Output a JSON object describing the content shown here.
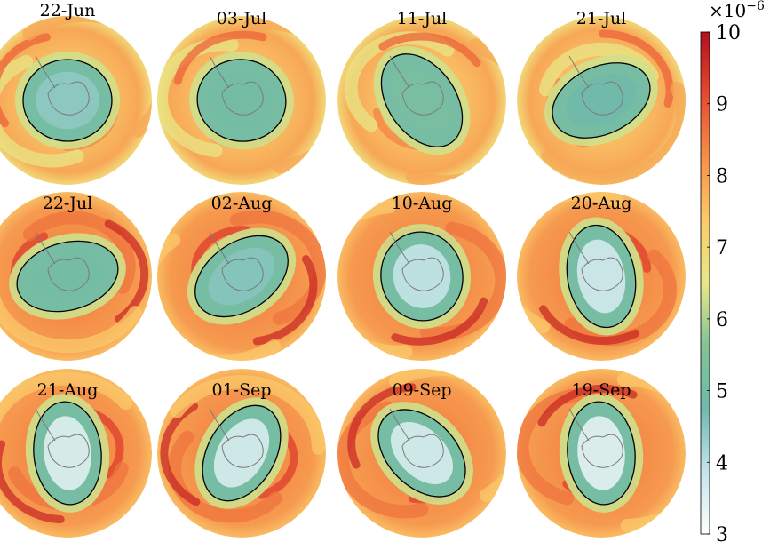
{
  "chart_data": {
    "type": "heatmap",
    "description_variable": "polar stereographic maps (Southern Hemisphere)",
    "panels": [
      {
        "label": "22-Jun",
        "vortex_shape": "round",
        "tilt_deg": 0,
        "inner_min": 4.4
      },
      {
        "label": "03-Jul",
        "vortex_shape": "round",
        "tilt_deg": 10,
        "inner_min": 5.0
      },
      {
        "label": "11-Jul",
        "vortex_shape": "elongated",
        "tilt_deg": 55,
        "inner_min": 5.2
      },
      {
        "label": "21-Jul",
        "vortex_shape": "elongated",
        "tilt_deg": -25,
        "inner_min": 4.8
      },
      {
        "label": "22-Jul",
        "vortex_shape": "elongated",
        "tilt_deg": -15,
        "inner_min": 5.0
      },
      {
        "label": "02-Aug",
        "vortex_shape": "elongated",
        "tilt_deg": -35,
        "inner_min": 4.5
      },
      {
        "label": "10-Aug",
        "vortex_shape": "round",
        "tilt_deg": 80,
        "inner_min": 3.8
      },
      {
        "label": "20-Aug",
        "vortex_shape": "elongated",
        "tilt_deg": 80,
        "inner_min": 3.6
      },
      {
        "label": "21-Aug",
        "vortex_shape": "elongated",
        "tilt_deg": 85,
        "inner_min": 3.4
      },
      {
        "label": "01-Sep",
        "vortex_shape": "elongated",
        "tilt_deg": -60,
        "inner_min": 3.5
      },
      {
        "label": "09-Sep",
        "vortex_shape": "elongated",
        "tilt_deg": 45,
        "inner_min": 3.5
      },
      {
        "label": "19-Sep",
        "vortex_shape": "elongated",
        "tilt_deg": 85,
        "inner_min": 3.3
      }
    ],
    "colorbar": {
      "range": [
        3,
        10
      ],
      "ticks": [
        "3",
        "4",
        "5",
        "6",
        "7",
        "8",
        "9",
        "10"
      ],
      "scale_label_base": "×10",
      "scale_label_exp": "−6",
      "colormap": [
        "#ffffff",
        "#c4e4ea",
        "#6fb9ad",
        "#82c394",
        "#e6e88a",
        "#fbca6a",
        "#f59049",
        "#e64a30",
        "#b2101c"
      ]
    }
  }
}
